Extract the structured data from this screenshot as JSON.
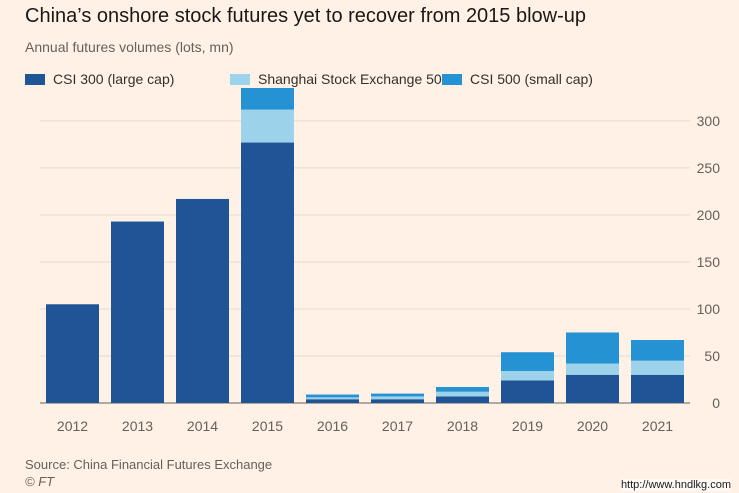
{
  "title": "China’s onshore stock futures yet to recover from 2015 blow-up",
  "subtitle": "Annual futures volumes (lots, mn)",
  "source": "Source: China Financial Futures Exchange",
  "credit": "© FT",
  "watermark": "http://www.hndlkg.com",
  "colors": {
    "background": "#fff1e5",
    "grid": "#e6d9ce",
    "csi300": "#1f5596",
    "sse50": "#9dd3ea",
    "csi500": "#2592d4"
  },
  "chart_data": {
    "type": "bar",
    "stacked": true,
    "categories": [
      "2012",
      "2013",
      "2014",
      "2015",
      "2016",
      "2017",
      "2018",
      "2019",
      "2020",
      "2021"
    ],
    "series": [
      {
        "name": "CSI 300 (large cap)",
        "color": "#1f5596",
        "values": [
          105,
          193,
          217,
          277,
          4,
          4,
          7,
          24,
          30,
          30
        ]
      },
      {
        "name": "Shanghai Stock Exchange 50",
        "color": "#9dd3ea",
        "values": [
          0,
          0,
          0,
          35,
          2,
          3,
          5,
          10,
          12,
          15
        ]
      },
      {
        "name": "CSI 500 (small cap)",
        "color": "#2592d4",
        "values": [
          0,
          0,
          0,
          23,
          3,
          3,
          5,
          20,
          33,
          22
        ]
      }
    ],
    "yticks": [
      0,
      50,
      100,
      150,
      200,
      250,
      300
    ],
    "ylim": [
      0,
      335
    ],
    "grid": true,
    "y_axis_side": "right",
    "legend_position": "top"
  }
}
